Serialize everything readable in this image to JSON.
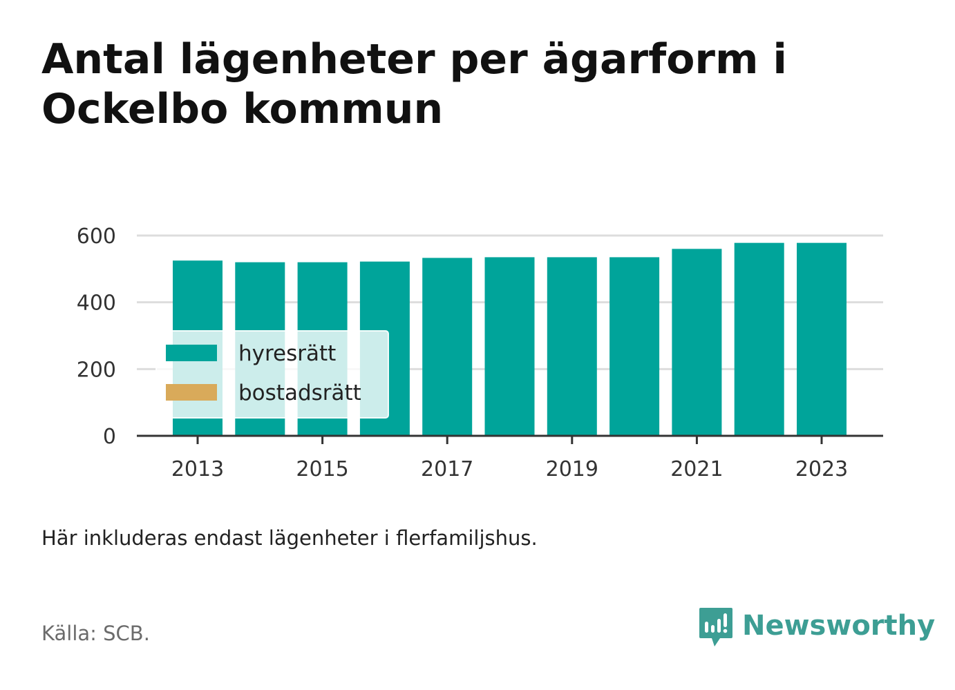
{
  "title": "Antal lägenheter per ägarform i Ockelbo kommun",
  "note": "Här inkluderas endast lägenheter i flerfamiljshus.",
  "source": "Källa: SCB.",
  "brand": {
    "name": "Newsworthy",
    "color": "#3d9e94",
    "icon": "bar-chart-speech-bubble-icon"
  },
  "colors": {
    "hyresratt": "#00a49a",
    "bostadsratt": "#d9aa5a",
    "grid": "#dddddd",
    "axis": "#333333",
    "text": "#333333"
  },
  "chart_data": {
    "type": "bar",
    "stacked": true,
    "categories": [
      "2013",
      "2014",
      "2015",
      "2016",
      "2017",
      "2018",
      "2019",
      "2020",
      "2021",
      "2022",
      "2023"
    ],
    "x_tick_labels": [
      "2013",
      "2015",
      "2017",
      "2019",
      "2021",
      "2023"
    ],
    "series": [
      {
        "name": "hyresrätt",
        "color": "#00a49a",
        "values": [
          525,
          520,
          520,
          522,
          533,
          535,
          535,
          535,
          560,
          578,
          578
        ]
      },
      {
        "name": "bostadsrätt",
        "color": "#d9aa5a",
        "values": [
          0,
          0,
          0,
          0,
          0,
          0,
          0,
          0,
          0,
          0,
          0
        ]
      }
    ],
    "ylim": [
      0,
      600
    ],
    "y_ticks": [
      0,
      200,
      400,
      600
    ],
    "grid": true,
    "legend_position": "bottom-left"
  }
}
